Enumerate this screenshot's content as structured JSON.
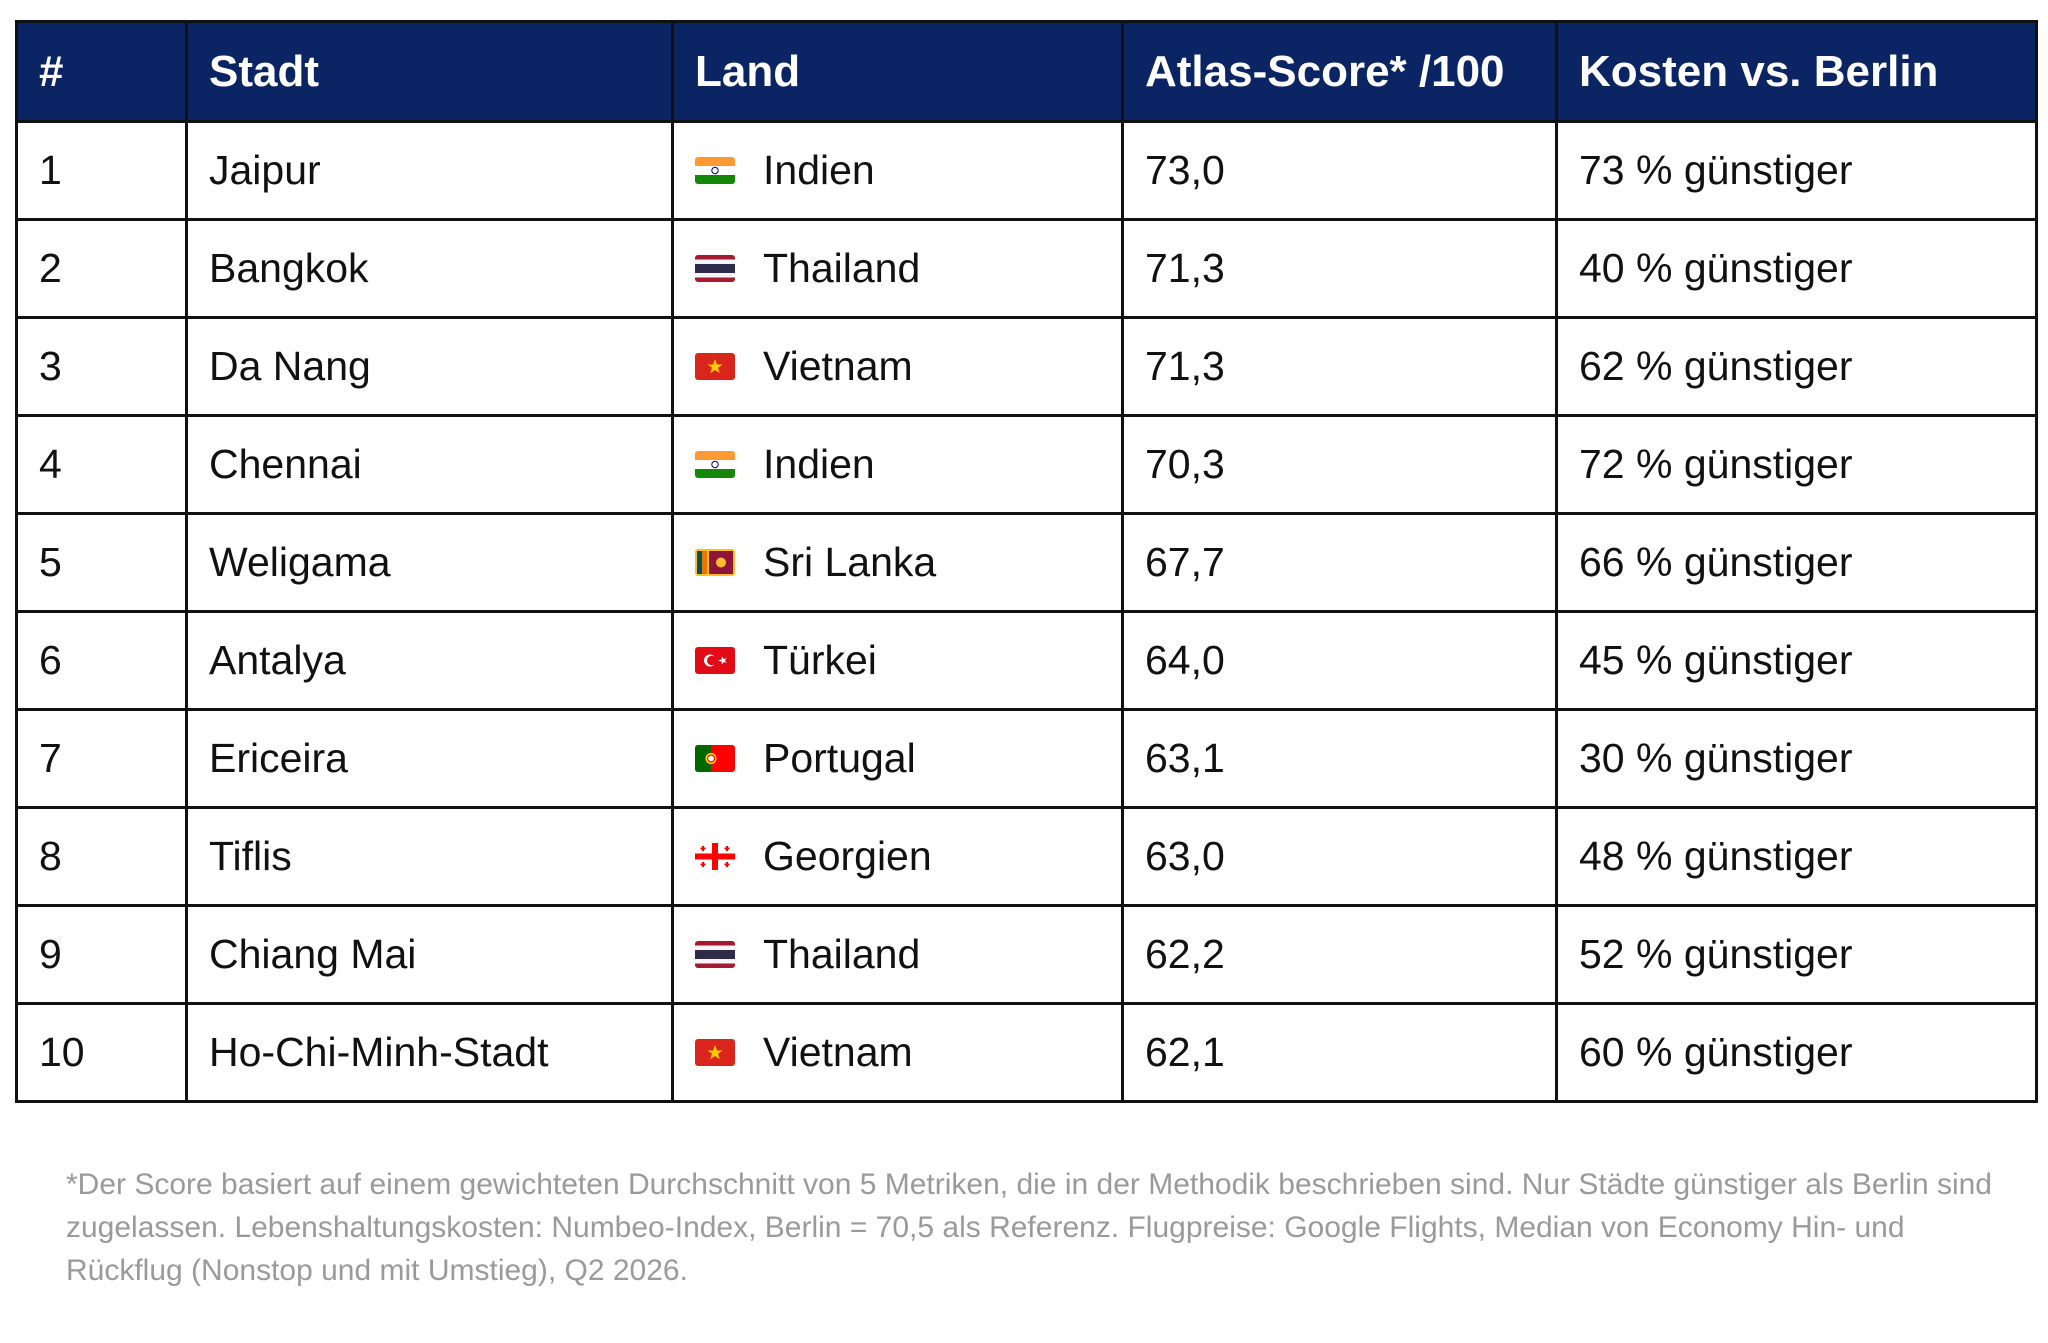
{
  "table": {
    "headers": {
      "rank": "#",
      "city": "Stadt",
      "country": "Land",
      "score": "Atlas-Score* /100",
      "cost": "Kosten vs. Berlin"
    },
    "header_bg": "#0b2463",
    "rows": [
      {
        "rank": "1",
        "city": "Jaipur",
        "country": "Indien",
        "flag": "india-flag-icon",
        "score": "73,0",
        "cost": "73 % günstiger"
      },
      {
        "rank": "2",
        "city": "Bangkok",
        "country": "Thailand",
        "flag": "thailand-flag-icon",
        "score": "71,3",
        "cost": "40 % günstiger"
      },
      {
        "rank": "3",
        "city": "Da Nang",
        "country": "Vietnam",
        "flag": "vietnam-flag-icon",
        "score": "71,3",
        "cost": "62 % günstiger"
      },
      {
        "rank": "4",
        "city": "Chennai",
        "country": "Indien",
        "flag": "india-flag-icon",
        "score": "70,3",
        "cost": "72 % günstiger"
      },
      {
        "rank": "5",
        "city": "Weligama",
        "country": "Sri Lanka",
        "flag": "sri-lanka-flag-icon",
        "score": "67,7",
        "cost": "66 % günstiger"
      },
      {
        "rank": "6",
        "city": "Antalya",
        "country": "Türkei",
        "flag": "turkey-flag-icon",
        "score": "64,0",
        "cost": "45 % günstiger"
      },
      {
        "rank": "7",
        "city": "Ericeira",
        "country": "Portugal",
        "flag": "portugal-flag-icon",
        "score": "63,1",
        "cost": "30 % günstiger"
      },
      {
        "rank": "8",
        "city": "Tiflis",
        "country": "Georgien",
        "flag": "georgia-flag-icon",
        "score": "63,0",
        "cost": "48 % günstiger"
      },
      {
        "rank": "9",
        "city": "Chiang Mai",
        "country": "Thailand",
        "flag": "thailand-flag-icon",
        "score": "62,2",
        "cost": "52 % günstiger"
      },
      {
        "rank": "10",
        "city": "Ho-Chi-Minh-Stadt",
        "country": "Vietnam",
        "flag": "vietnam-flag-icon",
        "score": "62,1",
        "cost": "60 % günstiger"
      }
    ]
  },
  "footnote": "*Der Score basiert auf einem gewichteten Durchschnitt von 5 Metriken, die in der Methodik beschrieben sind. Nur Städte günstiger als Berlin sind zugelassen. Lebenshaltungskosten: Numbeo-Index, Berlin = 70,5 als Referenz. Flugpreise: Google Flights, Median von Economy Hin- und Rückflug (Nonstop und mit Umstieg), Q2 2026."
}
